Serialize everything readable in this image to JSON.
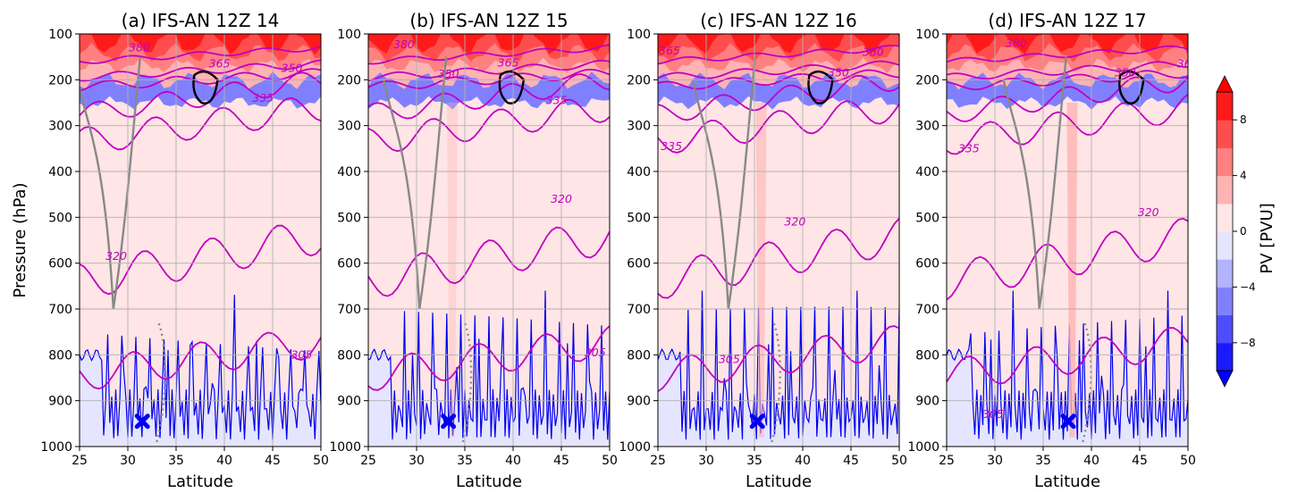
{
  "figure": {
    "ylabel": "Pressure (hPa)",
    "colorbar": {
      "label": "PV [PVU]",
      "ticks": [
        8,
        4,
        0,
        -4,
        -8
      ],
      "levels": [
        -10,
        -8,
        -6,
        -4,
        -2,
        0,
        2,
        4,
        6,
        8,
        10
      ],
      "colors": [
        "#1a1aff",
        "#4d4dff",
        "#8080ff",
        "#b3b3ff",
        "#e5e5ff",
        "#ffe5e5",
        "#ffb3b3",
        "#ff8080",
        "#ff4d4d",
        "#ff1a1a"
      ]
    }
  },
  "chart_data": [
    {
      "type": "contour",
      "title": "(a) IFS-AN 12Z 14",
      "xlabel": "Latitude",
      "ylabel": "Pressure (hPa)",
      "xlim": [
        25,
        50
      ],
      "ylim": [
        1000,
        100
      ],
      "x_ticks": [
        25,
        30,
        35,
        40,
        45,
        50
      ],
      "y_ticks": [
        100,
        200,
        300,
        400,
        500,
        600,
        700,
        800,
        900,
        1000
      ],
      "grid": true,
      "theta_contour_labels": [
        {
          "text": "380",
          "lat": 31.2,
          "p": 130
        },
        {
          "text": "365",
          "lat": 39.5,
          "p": 165
        },
        {
          "text": "350",
          "lat": 47,
          "p": 175
        },
        {
          "text": "335",
          "lat": 44,
          "p": 240
        },
        {
          "text": "320",
          "lat": 28.8,
          "p": 585
        },
        {
          "text": "305",
          "lat": 48,
          "p": 800
        }
      ],
      "marker": {
        "symbol": "x",
        "lat": 31.5,
        "p": 945
      }
    },
    {
      "type": "contour",
      "title": "(b) IFS-AN 12Z 15",
      "xlabel": "Latitude",
      "ylabel": "",
      "xlim": [
        25,
        50
      ],
      "ylim": [
        1000,
        100
      ],
      "x_ticks": [
        25,
        30,
        35,
        40,
        45,
        50
      ],
      "y_ticks": [
        100,
        200,
        300,
        400,
        500,
        600,
        700,
        800,
        900,
        1000
      ],
      "grid": true,
      "theta_contour_labels": [
        {
          "text": "380",
          "lat": 28.7,
          "p": 123
        },
        {
          "text": "365",
          "lat": 39.5,
          "p": 163
        },
        {
          "text": "350",
          "lat": 33.3,
          "p": 188
        },
        {
          "text": "335",
          "lat": 44.5,
          "p": 245
        },
        {
          "text": "320",
          "lat": 45,
          "p": 460
        },
        {
          "text": "305",
          "lat": 48.5,
          "p": 795
        }
      ],
      "marker": {
        "symbol": "x",
        "lat": 33.3,
        "p": 945
      }
    },
    {
      "type": "contour",
      "title": "(c) IFS-AN 12Z 16",
      "xlabel": "Latitude",
      "ylabel": "",
      "xlim": [
        25,
        50
      ],
      "ylim": [
        1000,
        100
      ],
      "x_ticks": [
        25,
        30,
        35,
        40,
        45,
        50
      ],
      "y_ticks": [
        100,
        200,
        300,
        400,
        500,
        600,
        700,
        800,
        900,
        1000
      ],
      "grid": true,
      "theta_contour_labels": [
        {
          "text": "365",
          "lat": 26.2,
          "p": 137
        },
        {
          "text": "380",
          "lat": 47.3,
          "p": 140
        },
        {
          "text": "350",
          "lat": 43.7,
          "p": 185
        },
        {
          "text": "335",
          "lat": 26.4,
          "p": 345
        },
        {
          "text": "320",
          "lat": 39.2,
          "p": 510
        },
        {
          "text": "305",
          "lat": 32.4,
          "p": 810
        }
      ],
      "marker": {
        "symbol": "x",
        "lat": 35.3,
        "p": 945
      }
    },
    {
      "type": "contour",
      "title": "(d) IFS-AN 12Z 17",
      "xlabel": "Latitude",
      "ylabel": "",
      "xlim": [
        25,
        50
      ],
      "ylim": [
        1000,
        100
      ],
      "x_ticks": [
        25,
        30,
        35,
        40,
        45,
        50
      ],
      "y_ticks": [
        100,
        200,
        300,
        400,
        500,
        600,
        700,
        800,
        900,
        1000
      ],
      "grid": true,
      "theta_contour_labels": [
        {
          "text": "380",
          "lat": 32.2,
          "p": 120
        },
        {
          "text": "350",
          "lat": 43.5,
          "p": 185
        },
        {
          "text": "36",
          "lat": 49.6,
          "p": 165
        },
        {
          "text": "335",
          "lat": 27.3,
          "p": 350
        },
        {
          "text": "320",
          "lat": 45.9,
          "p": 490
        },
        {
          "text": "305",
          "lat": 29.8,
          "p": 930
        }
      ],
      "marker": {
        "symbol": "x",
        "lat": 37.6,
        "p": 945
      }
    }
  ]
}
